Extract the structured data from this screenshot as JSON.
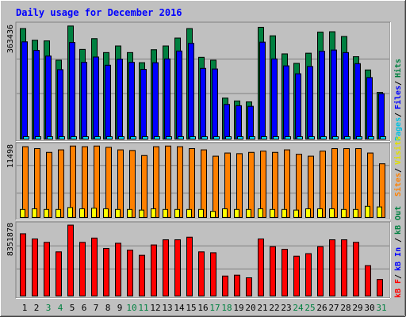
{
  "chart_data": {
    "type": "bar",
    "title": "Daily usage for December 2016",
    "categories": [
      "1",
      "2",
      "3",
      "4",
      "5",
      "6",
      "7",
      "8",
      "9",
      "10",
      "11",
      "12",
      "13",
      "14",
      "15",
      "16",
      "17",
      "18",
      "19",
      "20",
      "21",
      "22",
      "23",
      "24",
      "25",
      "26",
      "27",
      "28",
      "29",
      "30",
      "31"
    ],
    "weekend_days": [
      3,
      4,
      10,
      11,
      17,
      18,
      24,
      25,
      31
    ],
    "colors": {
      "hits": "#008040",
      "files": "#0000ff",
      "pages": "#00e0ff",
      "visits": "#ffff00",
      "sites": "#ff8000",
      "kb_f": "#ff0000",
      "kb_in": "#0000ff",
      "kb_out": "#008040",
      "title": "#0000ff",
      "weekend_label": "#008040",
      "weekday_label": "#000000"
    },
    "panels": [
      {
        "name": "pages-files-hits",
        "ymax_label": "363436",
        "ymax": 363436,
        "series": [
          {
            "name": "Hits",
            "values": [
              352000,
              315000,
              313000,
              252000,
              360000,
              286000,
              320000,
              276000,
              297000,
              276000,
              244000,
              285000,
              297000,
              322000,
              352000,
              261000,
              252000,
              132000,
              123000,
              120000,
              356000,
              329000,
              272000,
              242000,
              274000,
              341000,
              342000,
              327000,
              263000,
              221000,
              150000
            ]
          },
          {
            "name": "Files",
            "values": [
              310000,
              283000,
              265000,
              222000,
              308000,
              245000,
              262000,
              236000,
              255000,
              245000,
              223000,
              244000,
              256000,
              281000,
              305000,
              226000,
              224000,
              112000,
              108000,
              106000,
              309000,
              256000,
              234000,
              209000,
              232000,
              280000,
              284000,
              276000,
              241000,
              197000,
              146000
            ]
          },
          {
            "name": "Pages",
            "values": [
              10000,
              9500,
              9000,
              8500,
              10000,
              9000,
              9500,
              9000,
              9000,
              8500,
              8000,
              9000,
              9000,
              9500,
              10000,
              8500,
              8000,
              5000,
              4800,
              4800,
              10000,
              9000,
              8500,
              8000,
              8500,
              9500,
              9500,
              9500,
              9000,
              8000,
              6000
            ]
          }
        ],
        "legend": [
          "Pages",
          "Files",
          "Hits"
        ]
      },
      {
        "name": "visits-sites",
        "ymax_label": "11498",
        "ymax": 11498,
        "series": [
          {
            "name": "Sites",
            "values": [
              11300,
              11000,
              10400,
              10800,
              11400,
              11300,
              11400,
              11200,
              10800,
              10700,
              9900,
              11300,
              11400,
              11300,
              11000,
              10800,
              9800,
              10300,
              10200,
              10400,
              10600,
              10400,
              10800,
              10100,
              9800,
              10600,
              11000,
              11000,
              11000,
              10300,
              8600
            ]
          },
          {
            "name": "Visits",
            "values": [
              1400,
              1500,
              1400,
              1400,
              1700,
              1500,
              1600,
              1500,
              1400,
              1400,
              1300,
              1500,
              1400,
              1400,
              1400,
              1400,
              1100,
              1500,
              1400,
              1400,
              1500,
              1400,
              1400,
              1300,
              1500,
              1500,
              1500,
              1400,
              1400,
              1900,
              1800
            ]
          }
        ],
        "legend": [
          "Visits",
          "Sites"
        ]
      },
      {
        "name": "kbytes",
        "ymax_label": "8351878",
        "ymax": 8351878,
        "series": [
          {
            "name": "kB F",
            "values": [
              7300000,
              6700000,
              6300000,
              5200000,
              8300000,
              6300000,
              6800000,
              5600000,
              6200000,
              5400000,
              4800000,
              6000000,
              6600000,
              6600000,
              6900000,
              5200000,
              5100000,
              2400000,
              2500000,
              2200000,
              6700000,
              5800000,
              5500000,
              4700000,
              5000000,
              5800000,
              6600000,
              6600000,
              6300000,
              3600000,
              2000000
            ]
          }
        ],
        "legend": [
          "kB F",
          "kB In",
          "kB Out"
        ]
      }
    ]
  }
}
